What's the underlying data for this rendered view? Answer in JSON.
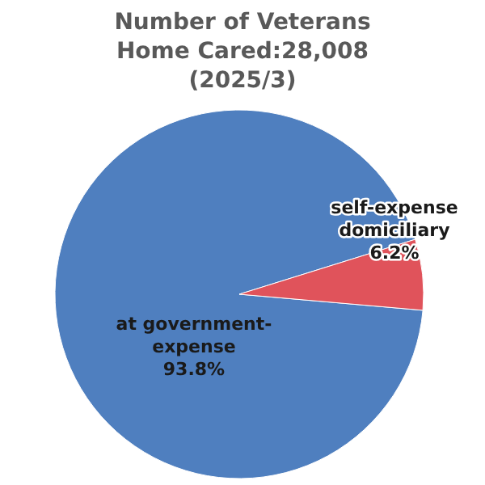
{
  "chart_data": {
    "type": "pie",
    "title": "Number of Veterans Home Cared:28,008 (2025/3)",
    "categories": [
      "at government-expense",
      "self-expense domiciliary"
    ],
    "values": [
      93.8,
      6.2
    ],
    "colors": [
      "#4f7fbf",
      "#e0535b"
    ],
    "value_labels": [
      "93.8%",
      "6.2%"
    ]
  }
}
